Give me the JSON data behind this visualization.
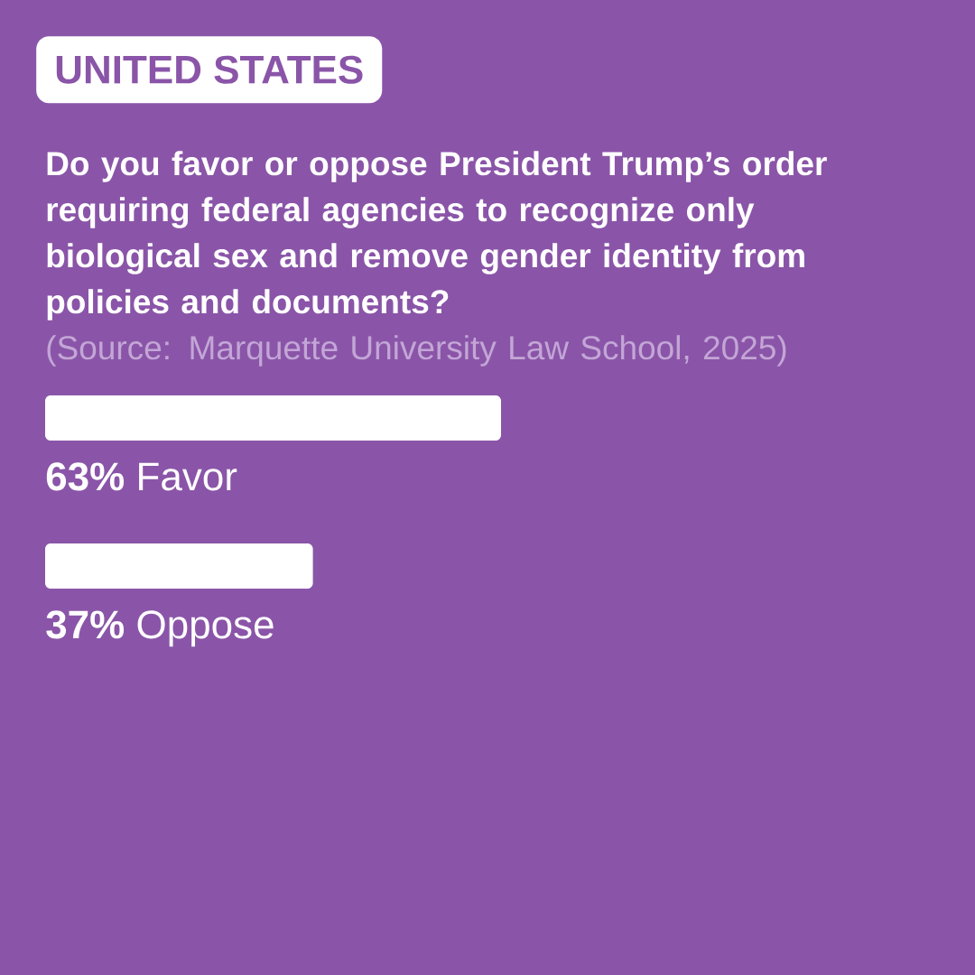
{
  "chart_data": {
    "type": "bar",
    "orientation": "horizontal",
    "subtitle": "UNITED STATES",
    "title": "Do you favor or oppose President Trump’s order requiring federal agencies to recognize only biological sex and remove gender identity from policies and documents?",
    "annotations": [
      "(Source: Marquette University Law School, 2025)"
    ],
    "categories": [
      "Favor",
      "Oppose"
    ],
    "values": [
      63,
      37
    ],
    "value_labels": [
      "63%",
      "37%"
    ],
    "color": "#ffffff"
  }
}
